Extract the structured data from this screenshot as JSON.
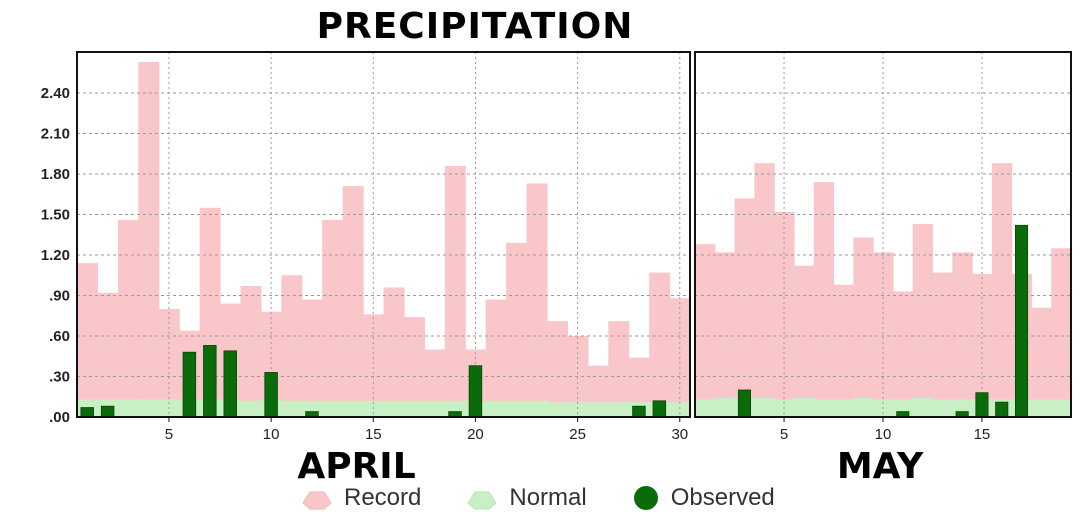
{
  "chart_data": {
    "type": "bar",
    "title": "PRECIPITATION",
    "yticks": [
      ".00",
      ".30",
      ".60",
      ".90",
      "1.20",
      "1.50",
      "1.80",
      "2.10",
      "2.40"
    ],
    "ylim": [
      0,
      2.6
    ],
    "grid": true,
    "legend_position": "bottom",
    "legend": [
      "Record",
      "Normal",
      "Observed"
    ],
    "colors": {
      "record": "#f9c7c9",
      "normal": "#c8f0c4",
      "observed": "#0b6b0b"
    },
    "panels": [
      {
        "name": "APRIL",
        "days": 30,
        "xticks": [
          "5",
          "10",
          "15",
          "20",
          "25",
          "30"
        ],
        "record": [
          1.14,
          0.92,
          1.46,
          2.63,
          0.8,
          0.64,
          1.55,
          0.84,
          0.97,
          0.78,
          1.05,
          0.87,
          1.46,
          1.71,
          0.76,
          0.96,
          0.74,
          0.5,
          1.86,
          0.5,
          0.87,
          1.29,
          1.73,
          0.71,
          0.6,
          0.38,
          0.71,
          0.44,
          1.07,
          0.88
        ],
        "normal": [
          0.13,
          0.13,
          0.13,
          0.13,
          0.13,
          0.13,
          0.13,
          0.13,
          0.12,
          0.13,
          0.12,
          0.12,
          0.12,
          0.12,
          0.12,
          0.12,
          0.12,
          0.12,
          0.12,
          0.12,
          0.12,
          0.12,
          0.12,
          0.11,
          0.11,
          0.11,
          0.11,
          0.11,
          0.11,
          0.11
        ],
        "observed": [
          0.07,
          0.08,
          0,
          0,
          0,
          0.48,
          0.53,
          0.49,
          0,
          0.33,
          0,
          0.04,
          0,
          0,
          0,
          0,
          0,
          0,
          0.04,
          0.38,
          0,
          0,
          0,
          0,
          0,
          0,
          0,
          0.08,
          0.12,
          0
        ]
      },
      {
        "name": "MAY",
        "days": 19,
        "xticks": [
          "5",
          "10",
          "15"
        ],
        "record": [
          1.28,
          1.22,
          1.62,
          1.88,
          1.52,
          1.12,
          1.74,
          0.98,
          1.33,
          1.22,
          0.93,
          1.43,
          1.07,
          1.22,
          1.06,
          1.88,
          1.06,
          0.81,
          1.25
        ],
        "normal": [
          0.13,
          0.14,
          0.14,
          0.14,
          0.13,
          0.14,
          0.13,
          0.13,
          0.14,
          0.13,
          0.13,
          0.14,
          0.13,
          0.13,
          0.13,
          0.13,
          0.13,
          0.13,
          0.13
        ],
        "observed": [
          0,
          0,
          0.2,
          0,
          0,
          0,
          0,
          0,
          0,
          0,
          0.04,
          0,
          0,
          0.04,
          0.18,
          0.11,
          1.42,
          0,
          0
        ]
      }
    ]
  }
}
